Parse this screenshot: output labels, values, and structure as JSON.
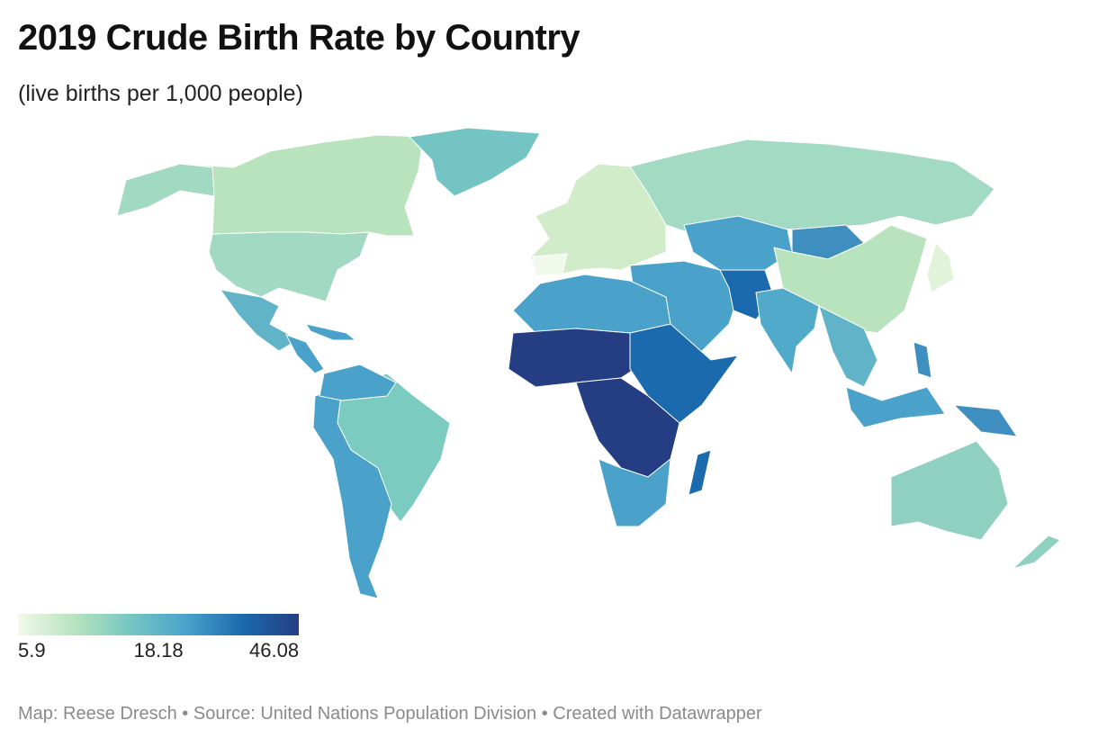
{
  "header": {
    "title": "2019 Crude Birth Rate by Country",
    "subtitle": "(live births per 1,000 people)"
  },
  "legend": {
    "colors": [
      "#f1f9ec",
      "#b8e3bd",
      "#76c6c3",
      "#4aa2cb",
      "#1b6aae",
      "#253e83"
    ],
    "ticks": [
      5.9,
      18.18,
      46.08
    ]
  },
  "footer": {
    "text": "Map: Reese Dresch • Source: United Nations Population Division • Created with Datawrapper"
  }
}
